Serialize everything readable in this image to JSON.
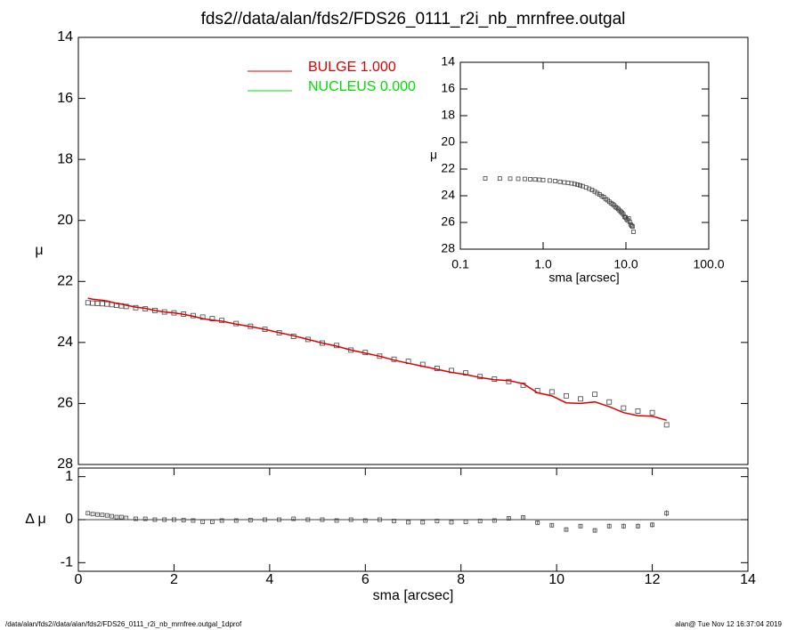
{
  "chart_data": [
    {
      "type": "scatter",
      "title": "fds2//data/alan/fds2/FDS26_0111_r2i_nb_mrnfree.outgal",
      "ylabel": "μ",
      "x": [
        0.2,
        0.3,
        0.4,
        0.5,
        0.6,
        0.7,
        0.8,
        0.9,
        1.0,
        1.2,
        1.4,
        1.6,
        1.8,
        2.0,
        2.2,
        2.4,
        2.6,
        2.8,
        3.0,
        3.3,
        3.6,
        3.9,
        4.2,
        4.5,
        4.8,
        5.1,
        5.4,
        5.7,
        6.0,
        6.3,
        6.6,
        6.9,
        7.2,
        7.5,
        7.8,
        8.1,
        8.4,
        8.7,
        9.0,
        9.3,
        9.6,
        9.9,
        10.2,
        10.5,
        10.8,
        11.1,
        11.4,
        11.7,
        12.0,
        12.3
      ],
      "values": [
        22.7,
        22.71,
        22.72,
        22.73,
        22.74,
        22.76,
        22.78,
        22.8,
        22.82,
        22.86,
        22.9,
        22.95,
        23.0,
        23.03,
        23.07,
        23.12,
        23.17,
        23.22,
        23.28,
        23.38,
        23.47,
        23.57,
        23.68,
        23.8,
        23.9,
        24.02,
        24.1,
        24.25,
        24.33,
        24.45,
        24.55,
        24.62,
        24.72,
        24.85,
        24.92,
        25.0,
        25.12,
        25.2,
        25.28,
        25.4,
        25.58,
        25.62,
        25.75,
        25.85,
        25.7,
        25.95,
        26.15,
        26.25,
        26.3,
        26.7
      ],
      "model": {
        "color": "#dd0000",
        "values": [
          22.55,
          22.58,
          22.6,
          22.62,
          22.64,
          22.68,
          22.72,
          22.74,
          22.78,
          22.84,
          22.88,
          22.95,
          23.0,
          23.03,
          23.08,
          23.14,
          23.22,
          23.27,
          23.3,
          23.4,
          23.48,
          23.57,
          23.68,
          23.78,
          23.9,
          24.02,
          24.12,
          24.25,
          24.35,
          24.45,
          24.58,
          24.68,
          24.78,
          24.88,
          24.98,
          25.05,
          25.15,
          25.22,
          25.25,
          25.35,
          25.65,
          25.75,
          25.98,
          26.0,
          25.95,
          26.1,
          26.3,
          26.4,
          26.42,
          26.55
        ]
      },
      "legend": [
        {
          "label": "BULGE  1.000",
          "color": "#dd0000"
        },
        {
          "label": "NUCLEUS  0.000",
          "color": "#00dd00"
        }
      ],
      "xlim": [
        0,
        14
      ],
      "ylim": [
        14,
        28
      ],
      "invert_y": true,
      "yticks": [
        14,
        16,
        18,
        20,
        22,
        24,
        26,
        28
      ]
    },
    {
      "type": "scatter",
      "xlabel": "sma [arcsec]",
      "ylabel": "Δ μ",
      "values": [
        0.15,
        0.13,
        0.12,
        0.11,
        0.1,
        0.08,
        0.06,
        0.06,
        0.04,
        0.02,
        0.02,
        0.0,
        0.0,
        0.0,
        -0.01,
        -0.02,
        -0.05,
        -0.05,
        -0.02,
        -0.02,
        -0.01,
        0.0,
        0.0,
        0.02,
        0.0,
        0.0,
        -0.02,
        0.0,
        -0.02,
        0.0,
        -0.03,
        -0.06,
        -0.06,
        -0.03,
        -0.06,
        -0.05,
        -0.03,
        -0.02,
        0.03,
        0.05,
        -0.07,
        -0.13,
        -0.23,
        -0.15,
        -0.25,
        -0.15,
        -0.15,
        -0.15,
        -0.12,
        0.15
      ],
      "errors": [
        0.01,
        0.01,
        0.01,
        0.01,
        0.01,
        0.01,
        0.01,
        0.01,
        0.01,
        0.01,
        0.01,
        0.01,
        0.01,
        0.01,
        0.01,
        0.01,
        0.01,
        0.01,
        0.01,
        0.01,
        0.01,
        0.01,
        0.01,
        0.01,
        0.01,
        0.01,
        0.01,
        0.01,
        0.01,
        0.01,
        0.01,
        0.01,
        0.01,
        0.01,
        0.01,
        0.01,
        0.01,
        0.01,
        0.03,
        0.03,
        0.04,
        0.04,
        0.05,
        0.05,
        0.05,
        0.06,
        0.06,
        0.06,
        0.06,
        0.07
      ],
      "xlim": [
        0,
        14
      ],
      "xticks": [
        0,
        2,
        4,
        6,
        8,
        10,
        12,
        14
      ],
      "ylim": [
        -1.2,
        1.2
      ],
      "yticks": [
        -1,
        0,
        1
      ],
      "zero_line": true
    },
    {
      "type": "scatter",
      "xlabel": "sma [arcsec]",
      "ylabel": "μ",
      "log_x": true,
      "invert_y": true,
      "xlim": [
        0.1,
        100
      ],
      "xticks": [
        0.1,
        {
          "value": 1,
          "label": "1.0"
        },
        {
          "value": 10,
          "label": "10.0"
        },
        {
          "value": 100,
          "label": "100.0"
        }
      ],
      "ylim": [
        14,
        28
      ],
      "yticks": [
        14,
        16,
        18,
        20,
        22,
        24,
        26,
        28
      ]
    }
  ],
  "footer": {
    "left": "/data/alan/fds2//data/alan/fds2/FDS26_0111_r2i_nb_mrnfree.outgal_1dprof",
    "right": "alan@  Tue Nov 12 16:37:04 2019"
  }
}
